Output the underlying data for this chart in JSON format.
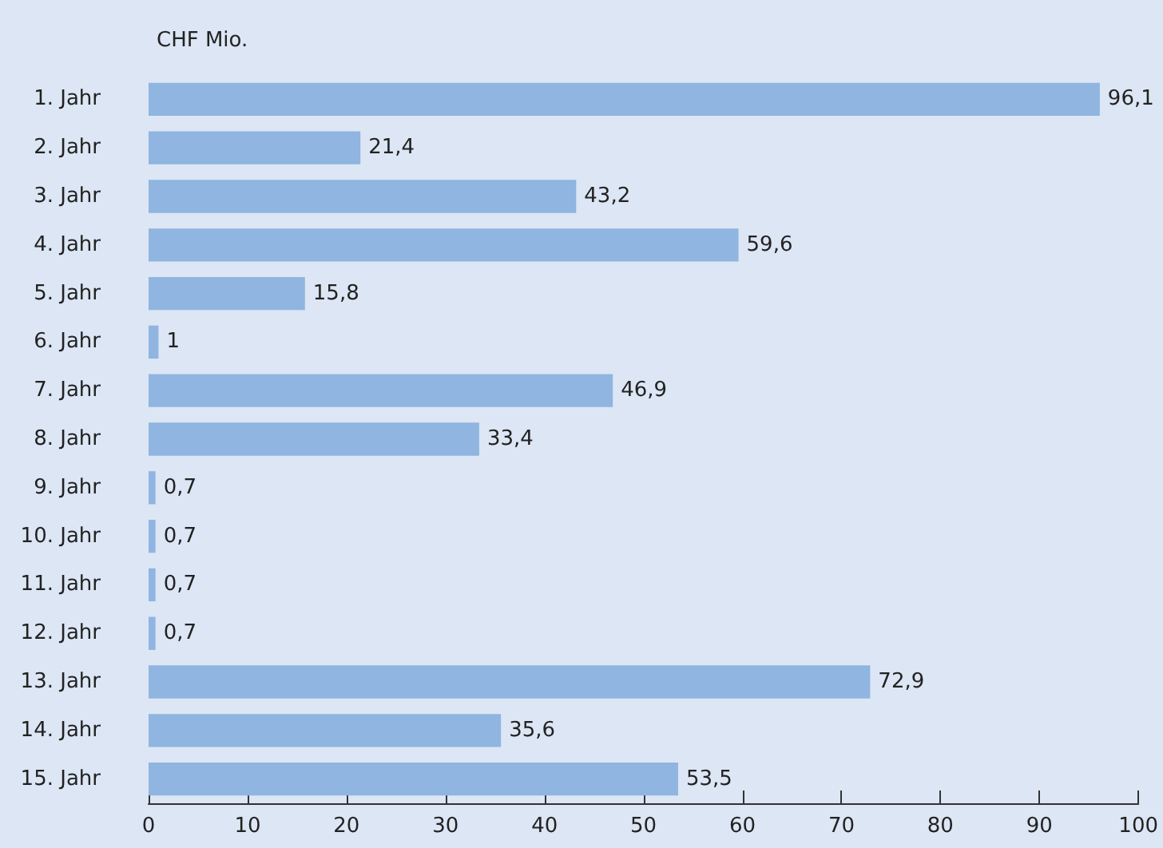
{
  "chart_data": {
    "type": "bar",
    "orientation": "horizontal",
    "title": "CHF Mio.",
    "categories": [
      "1. Jahr",
      "2. Jahr",
      "3. Jahr",
      "4. Jahr",
      "5. Jahr",
      "6. Jahr",
      "7. Jahr",
      "8. Jahr",
      "9. Jahr",
      "10. Jahr",
      "11. Jahr",
      "12. Jahr",
      "13. Jahr",
      "14. Jahr",
      "15. Jahr"
    ],
    "values": [
      96.1,
      21.4,
      43.2,
      59.6,
      15.8,
      1,
      46.9,
      33.4,
      0.7,
      0.7,
      0.7,
      0.7,
      72.9,
      35.6,
      53.5
    ],
    "value_labels": [
      "96,1",
      "21,4",
      "43,2",
      "59,6",
      "15,8",
      "1",
      "46,9",
      "33,4",
      "0,7",
      "0,7",
      "0,7",
      "0,7",
      "72,9",
      "35,6",
      "53,5"
    ],
    "color": "#8fb5e0",
    "xlim": [
      0,
      100
    ],
    "xticks": [
      0,
      10,
      20,
      30,
      40,
      50,
      60,
      70,
      80,
      90,
      100
    ],
    "grid": false
  }
}
